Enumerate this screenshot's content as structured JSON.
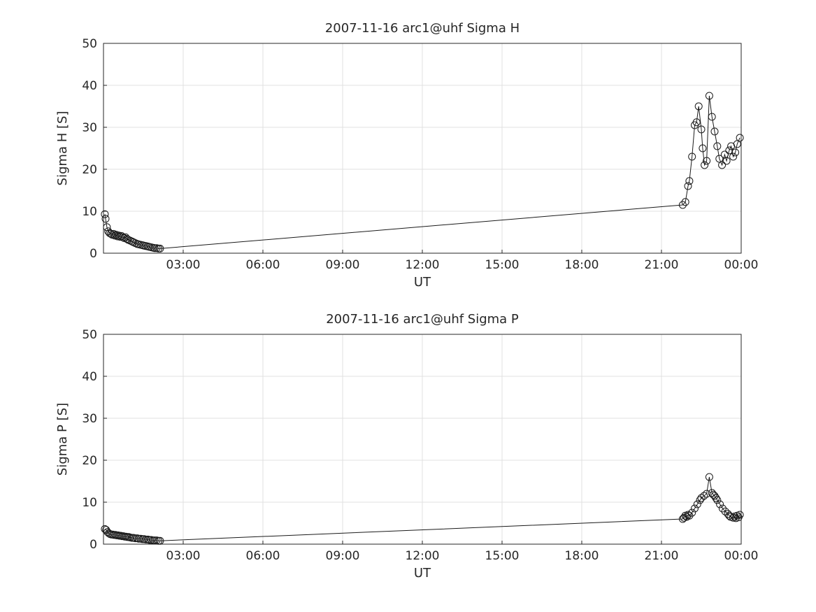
{
  "page": {
    "background": "#ffffff",
    "text_color": "#262626",
    "grid_color": "#e0e0e0",
    "axis_color": "#262626",
    "series_color": "#1a1a1a"
  },
  "chart_data": [
    {
      "type": "line",
      "title": "2007-11-16  arc1@uhf Sigma H",
      "xlabel": "UT",
      "ylabel": "Sigma H [S]",
      "xlim": [
        0,
        24
      ],
      "ylim": [
        0,
        50
      ],
      "grid": true,
      "legend": "none",
      "marker": "open-circle",
      "xticks": {
        "values": [
          3,
          6,
          9,
          12,
          15,
          18,
          21,
          24
        ],
        "labels": [
          "03:00",
          "06:00",
          "09:00",
          "12:00",
          "15:00",
          "18:00",
          "21:00",
          "00:00"
        ]
      },
      "yticks": [
        0,
        10,
        20,
        30,
        40,
        50
      ],
      "points": [
        [
          0.05,
          9.3
        ],
        [
          0.08,
          8.2
        ],
        [
          0.13,
          6.2
        ],
        [
          0.18,
          5.2
        ],
        [
          0.23,
          4.8
        ],
        [
          0.28,
          4.6
        ],
        [
          0.33,
          4.4
        ],
        [
          0.38,
          4.6
        ],
        [
          0.43,
          4.2
        ],
        [
          0.48,
          4.4
        ],
        [
          0.53,
          4.0
        ],
        [
          0.58,
          4.2
        ],
        [
          0.63,
          3.9
        ],
        [
          0.68,
          4.1
        ],
        [
          0.73,
          3.8
        ],
        [
          0.78,
          3.6
        ],
        [
          0.83,
          3.8
        ],
        [
          0.88,
          3.4
        ],
        [
          0.93,
          3.2
        ],
        [
          1.0,
          3.0
        ],
        [
          1.07,
          2.8
        ],
        [
          1.13,
          2.6
        ],
        [
          1.2,
          2.4
        ],
        [
          1.27,
          2.2
        ],
        [
          1.33,
          2.1
        ],
        [
          1.4,
          2.0
        ],
        [
          1.47,
          1.9
        ],
        [
          1.53,
          1.8
        ],
        [
          1.6,
          1.7
        ],
        [
          1.67,
          1.6
        ],
        [
          1.73,
          1.5
        ],
        [
          1.8,
          1.4
        ],
        [
          1.87,
          1.3
        ],
        [
          1.93,
          1.2
        ],
        [
          2.0,
          1.2
        ],
        [
          2.07,
          1.1
        ],
        [
          2.13,
          1.1
        ],
        [
          21.8,
          11.5
        ],
        [
          21.9,
          12.2
        ],
        [
          22.0,
          16.0
        ],
        [
          22.05,
          17.2
        ],
        [
          22.15,
          23.0
        ],
        [
          22.25,
          30.5
        ],
        [
          22.32,
          31.2
        ],
        [
          22.4,
          35.0
        ],
        [
          22.5,
          29.5
        ],
        [
          22.55,
          25.0
        ],
        [
          22.62,
          21.0
        ],
        [
          22.7,
          22.0
        ],
        [
          22.8,
          37.5
        ],
        [
          22.9,
          32.5
        ],
        [
          23.0,
          29.0
        ],
        [
          23.1,
          25.5
        ],
        [
          23.18,
          22.5
        ],
        [
          23.28,
          21.0
        ],
        [
          23.38,
          23.5
        ],
        [
          23.45,
          22.0
        ],
        [
          23.55,
          24.5
        ],
        [
          23.62,
          25.5
        ],
        [
          23.7,
          23.0
        ],
        [
          23.78,
          24.0
        ],
        [
          23.85,
          26.0
        ],
        [
          23.95,
          27.5
        ]
      ]
    },
    {
      "type": "line",
      "title": "2007-11-16  arc1@uhf Sigma P",
      "xlabel": "UT",
      "ylabel": "Sigma P [S]",
      "xlim": [
        0,
        24
      ],
      "ylim": [
        0,
        50
      ],
      "grid": true,
      "legend": "none",
      "marker": "open-circle",
      "xticks": {
        "values": [
          3,
          6,
          9,
          12,
          15,
          18,
          21,
          24
        ],
        "labels": [
          "03:00",
          "06:00",
          "09:00",
          "12:00",
          "15:00",
          "18:00",
          "21:00",
          "00:00"
        ]
      },
      "yticks": [
        0,
        10,
        20,
        30,
        40,
        50
      ],
      "points": [
        [
          0.05,
          3.6
        ],
        [
          0.1,
          3.4
        ],
        [
          0.15,
          2.9
        ],
        [
          0.2,
          2.6
        ],
        [
          0.25,
          2.4
        ],
        [
          0.3,
          2.3
        ],
        [
          0.35,
          2.3
        ],
        [
          0.4,
          2.2
        ],
        [
          0.45,
          2.2
        ],
        [
          0.5,
          2.1
        ],
        [
          0.55,
          2.1
        ],
        [
          0.6,
          2.0
        ],
        [
          0.65,
          2.0
        ],
        [
          0.7,
          1.9
        ],
        [
          0.75,
          1.9
        ],
        [
          0.8,
          1.8
        ],
        [
          0.85,
          1.8
        ],
        [
          0.9,
          1.7
        ],
        [
          0.95,
          1.7
        ],
        [
          1.0,
          1.6
        ],
        [
          1.07,
          1.5
        ],
        [
          1.13,
          1.5
        ],
        [
          1.2,
          1.4
        ],
        [
          1.27,
          1.4
        ],
        [
          1.33,
          1.3
        ],
        [
          1.4,
          1.3
        ],
        [
          1.47,
          1.2
        ],
        [
          1.53,
          1.2
        ],
        [
          1.6,
          1.1
        ],
        [
          1.67,
          1.1
        ],
        [
          1.73,
          1.0
        ],
        [
          1.8,
          1.0
        ],
        [
          1.87,
          0.9
        ],
        [
          1.93,
          0.9
        ],
        [
          2.0,
          0.9
        ],
        [
          2.07,
          0.8
        ],
        [
          2.13,
          0.8
        ],
        [
          21.8,
          6.0
        ],
        [
          21.85,
          6.3
        ],
        [
          21.9,
          6.8
        ],
        [
          21.95,
          6.5
        ],
        [
          22.0,
          7.0
        ],
        [
          22.05,
          6.8
        ],
        [
          22.15,
          7.5
        ],
        [
          22.25,
          8.5
        ],
        [
          22.35,
          9.5
        ],
        [
          22.45,
          10.5
        ],
        [
          22.5,
          11.0
        ],
        [
          22.6,
          11.5
        ],
        [
          22.7,
          12.0
        ],
        [
          22.8,
          16.0
        ],
        [
          22.9,
          12.2
        ],
        [
          22.95,
          11.8
        ],
        [
          23.0,
          11.5
        ],
        [
          23.05,
          11.0
        ],
        [
          23.1,
          10.5
        ],
        [
          23.2,
          9.5
        ],
        [
          23.3,
          8.5
        ],
        [
          23.4,
          7.8
        ],
        [
          23.5,
          7.2
        ],
        [
          23.55,
          6.8
        ],
        [
          23.6,
          6.5
        ],
        [
          23.7,
          6.3
        ],
        [
          23.75,
          6.6
        ],
        [
          23.8,
          6.2
        ],
        [
          23.85,
          6.8
        ],
        [
          23.9,
          6.4
        ],
        [
          23.95,
          7.0
        ]
      ]
    }
  ]
}
